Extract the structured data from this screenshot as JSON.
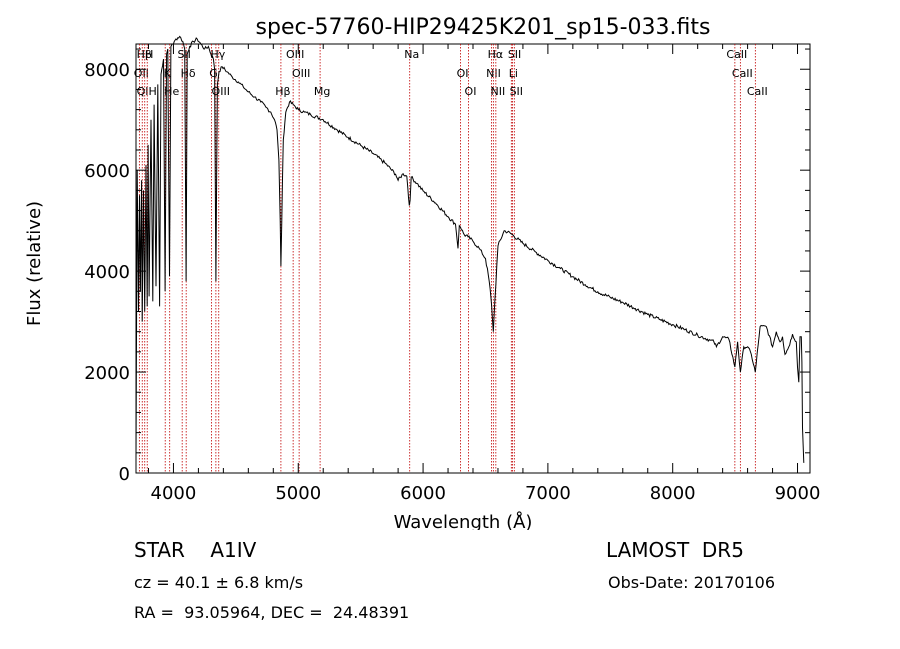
{
  "chart_data": {
    "type": "line",
    "title": "spec-57760-HIP29425K201_sp15-033.fits",
    "xlabel": "Wavelength (Å)",
    "ylabel": "Flux (relative)",
    "xlim": [
      3700,
      9100
    ],
    "ylim": [
      0,
      8500
    ],
    "x_ticks": [
      4000,
      5000,
      6000,
      7000,
      8000,
      9000
    ],
    "y_ticks": [
      0,
      2000,
      4000,
      6000,
      8000
    ],
    "grid": false,
    "series": [
      {
        "x": [
          3700,
          3710,
          3720,
          3728,
          3735,
          3745,
          3750,
          3760,
          3770,
          3780,
          3790,
          3797,
          3805,
          3820,
          3835,
          3845,
          3860,
          3875,
          3889,
          3900,
          3920,
          3933,
          3945,
          3955,
          3968,
          3980,
          3990,
          4000,
          4020,
          4050,
          4075,
          4090,
          4101,
          4110,
          4130,
          4160,
          4190,
          4220,
          4250,
          4280,
          4300,
          4320,
          4330,
          4340,
          4352,
          4365,
          4390,
          4430,
          4470,
          4520,
          4560,
          4600,
          4650,
          4700,
          4740,
          4780,
          4810,
          4830,
          4845,
          4855,
          4861,
          4868,
          4880,
          4900,
          4930,
          4960,
          5000,
          5050,
          5100,
          5200,
          5300,
          5400,
          5500,
          5600,
          5700,
          5780,
          5800,
          5840,
          5870,
          5890,
          5896,
          5905,
          5950,
          6000,
          6100,
          6200,
          6260,
          6280,
          6290,
          6300,
          6330,
          6360,
          6400,
          6450,
          6500,
          6530,
          6550,
          6563,
          6575,
          6600,
          6650,
          6700,
          6800,
          6900,
          7000,
          7100,
          7200,
          7300,
          7400,
          7500,
          7600,
          7700,
          7800,
          7900,
          8000,
          8100,
          8200,
          8300,
          8330,
          8350,
          8400,
          8450,
          8498,
          8520,
          8542,
          8570,
          8600,
          8630,
          8662,
          8700,
          8750,
          8800,
          8830,
          8860,
          8880,
          8900,
          8930,
          8960,
          8990,
          9000,
          9010,
          9020,
          9030,
          9035,
          9040,
          9050
        ],
        "y": [
          300,
          6000,
          3200,
          5500,
          3600,
          5800,
          3000,
          5600,
          3200,
          6100,
          3300,
          6500,
          3500,
          7000,
          3400,
          7300,
          3700,
          7700,
          3300,
          7900,
          8200,
          3600,
          8300,
          8400,
          3900,
          8450,
          8500,
          8500,
          8600,
          8650,
          8550,
          8400,
          3800,
          8300,
          8450,
          8550,
          8600,
          8500,
          8400,
          8450,
          8300,
          8200,
          8000,
          3800,
          7700,
          7950,
          8050,
          7950,
          7850,
          7750,
          7650,
          7550,
          7450,
          7350,
          7250,
          7150,
          7000,
          6800,
          6200,
          5000,
          4100,
          5000,
          6600,
          7150,
          7350,
          7300,
          7200,
          7150,
          7100,
          7000,
          6820,
          6650,
          6490,
          6330,
          6130,
          5920,
          5800,
          5930,
          5880,
          5300,
          5400,
          5860,
          5740,
          5590,
          5350,
          5080,
          4930,
          4450,
          4900,
          4870,
          4720,
          4680,
          4590,
          4450,
          4250,
          3800,
          3300,
          2800,
          3400,
          4500,
          4800,
          4750,
          4550,
          4380,
          4210,
          4050,
          3890,
          3730,
          3590,
          3480,
          3380,
          3260,
          3140,
          3040,
          2940,
          2840,
          2730,
          2630,
          2600,
          2500,
          2700,
          2650,
          2100,
          2600,
          2000,
          2500,
          2500,
          2350,
          2000,
          2900,
          2900,
          2500,
          2800,
          2600,
          2700,
          2350,
          2500,
          2750,
          2600,
          2100,
          1800,
          2700,
          2700,
          2200,
          900,
          200
        ]
      }
    ],
    "lines": [
      {
        "label": "Hβ",
        "x": 3750
      },
      {
        "label": "OII",
        "x": 3727
      },
      {
        "label": "QIH",
        "x": 3770
      },
      {
        "label": "H",
        "x": 3790
      },
      {
        "label": "K",
        "x": 3934
      },
      {
        "label": "He",
        "x": 3970
      },
      {
        "label": "SII",
        "x": 4070
      },
      {
        "label": "Hδ",
        "x": 4102
      },
      {
        "label": "OIII",
        "x": 4363
      },
      {
        "label": "Hγ",
        "x": 4340
      },
      {
        "label": "G",
        "x": 4305
      },
      {
        "label": "Hβ",
        "x": 4861
      },
      {
        "label": "OIII",
        "x": 4959
      },
      {
        "label": "OIII",
        "x": 5007
      },
      {
        "label": "Mg",
        "x": 5175
      },
      {
        "label": "Na",
        "x": 5893
      },
      {
        "label": "OI",
        "x": 6300
      },
      {
        "label": "OI",
        "x": 6364
      },
      {
        "label": "Hα",
        "x": 6563
      },
      {
        "label": "NII",
        "x": 6548
      },
      {
        "label": "NII",
        "x": 6583
      },
      {
        "label": "SII",
        "x": 6717
      },
      {
        "label": "Li",
        "x": 6707
      },
      {
        "label": "SII",
        "x": 6731
      },
      {
        "label": "CaII",
        "x": 8498
      },
      {
        "label": "CaII",
        "x": 8542
      },
      {
        "label": "CaII",
        "x": 8662
      }
    ]
  },
  "info": {
    "object_type": "STAR",
    "subclass": "A1IV",
    "survey": "LAMOST  DR5",
    "cz": "cz = 40.1 ± 6.8 km/s",
    "obs_date": "Obs-Date: 20170106",
    "coords": "RA =  93.05964, DEC =  24.48391"
  }
}
